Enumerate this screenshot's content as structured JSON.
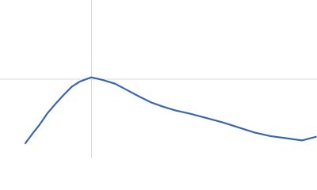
{
  "chart_data": {
    "type": "line",
    "x": [
      0.48,
      0.6,
      0.75,
      0.9,
      1.05,
      1.2,
      1.36,
      1.51,
      1.73,
      1.96,
      2.18,
      2.41,
      2.64,
      2.86,
      3.09,
      3.31,
      3.61,
      3.92,
      4.22,
      4.52,
      4.82,
      5.12,
      5.42,
      5.72,
      5.98
    ],
    "series": [
      {
        "color": "#3a66b0",
        "values": [
          0.21,
          0.33,
          0.47,
          0.63,
          0.76,
          0.88,
          1.0,
          1.07,
          1.13,
          1.09,
          1.04,
          0.95,
          0.86,
          0.78,
          0.72,
          0.67,
          0.62,
          0.56,
          0.5,
          0.43,
          0.36,
          0.31,
          0.28,
          0.25,
          0.3
        ]
      }
    ],
    "xlim": [
      0,
      6
    ],
    "ylim": [
      0,
      2.208
    ],
    "xticks": [
      1.732
    ],
    "yticks": [
      1.104
    ],
    "grid": true
  }
}
